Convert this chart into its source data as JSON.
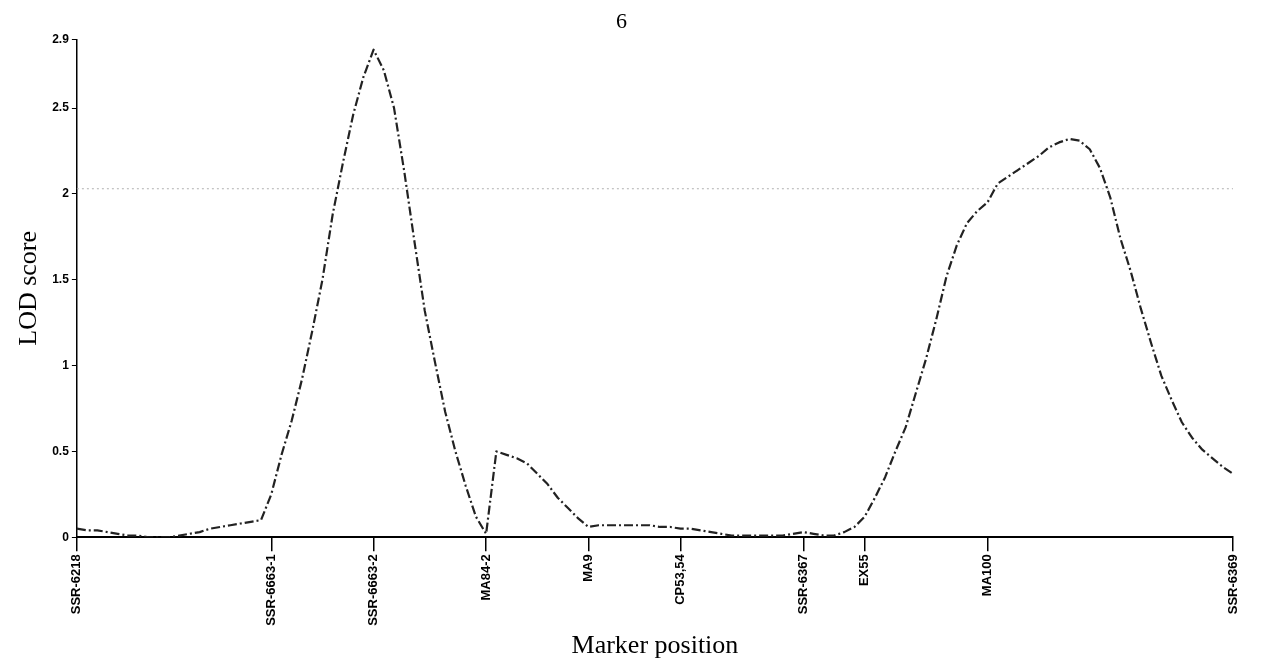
{
  "chart_data": {
    "type": "line",
    "title": "6",
    "xlabel": "Marker position",
    "ylabel": "LOD score",
    "categories": [
      "SSR-6218",
      null,
      null,
      null,
      null,
      null,
      null,
      null,
      null,
      null,
      null,
      null,
      null,
      null,
      null,
      null,
      null,
      null,
      null,
      "SSR-6663-1",
      null,
      null,
      null,
      null,
      null,
      null,
      null,
      null,
      null,
      "SSR-6663-2",
      null,
      null,
      null,
      null,
      null,
      null,
      null,
      null,
      null,
      null,
      "MA84-2",
      null,
      null,
      null,
      null,
      null,
      null,
      null,
      null,
      null,
      "MA9",
      null,
      null,
      null,
      null,
      null,
      null,
      null,
      null,
      "CP53,54",
      null,
      null,
      null,
      null,
      null,
      null,
      null,
      null,
      null,
      null,
      null,
      "SSR-6367",
      null,
      null,
      null,
      null,
      null,
      "EX55",
      null,
      null,
      null,
      null,
      null,
      null,
      null,
      null,
      null,
      null,
      null,
      "MA100",
      null,
      null,
      null,
      null,
      null,
      null,
      null,
      null,
      null,
      null,
      null,
      null,
      null,
      null,
      null,
      null,
      null,
      null,
      null,
      null,
      null,
      null,
      null,
      "SSR-6369"
    ],
    "series": [
      {
        "color": "#222222",
        "values": [
          0.05,
          0.04,
          0.04,
          0.03,
          0.02,
          0.01,
          0.01,
          0.0,
          0.0,
          0.0,
          0.01,
          0.02,
          0.03,
          0.05,
          0.06,
          0.07,
          0.08,
          0.09,
          0.1,
          0.25,
          0.48,
          0.68,
          0.92,
          1.2,
          1.5,
          1.88,
          2.18,
          2.46,
          2.68,
          2.84,
          2.72,
          2.5,
          2.13,
          1.72,
          1.32,
          1.02,
          0.73,
          0.5,
          0.3,
          0.12,
          0.02,
          0.5,
          0.48,
          0.46,
          0.43,
          0.37,
          0.31,
          0.23,
          0.17,
          0.11,
          0.06,
          0.07,
          0.07,
          0.07,
          0.07,
          0.07,
          0.07,
          0.06,
          0.06,
          0.05,
          0.05,
          0.04,
          0.03,
          0.02,
          0.01,
          0.01,
          0.01,
          0.01,
          0.01,
          0.01,
          0.02,
          0.03,
          0.02,
          0.01,
          0.01,
          0.03,
          0.06,
          0.12,
          0.23,
          0.35,
          0.5,
          0.64,
          0.84,
          1.04,
          1.27,
          1.52,
          1.7,
          1.83,
          1.9,
          1.95,
          2.06,
          2.1,
          2.14,
          2.18,
          2.22,
          2.27,
          2.3,
          2.32,
          2.31,
          2.26,
          2.15,
          1.98,
          1.74,
          1.55,
          1.33,
          1.13,
          0.94,
          0.8,
          0.67,
          0.58,
          0.51,
          0.46,
          0.41,
          0.37
        ]
      }
    ],
    "ylim": [
      0,
      2.9
    ],
    "yticks": [
      0,
      0.5,
      1,
      1.5,
      2,
      2.5,
      2.9
    ],
    "ref_lines": [
      {
        "axis": "y",
        "value": 2.03,
        "color": "#b0b0b0",
        "line_style": "dotted"
      }
    ],
    "grid": false,
    "legend": false,
    "marker": "none",
    "line_style": "dashed"
  }
}
